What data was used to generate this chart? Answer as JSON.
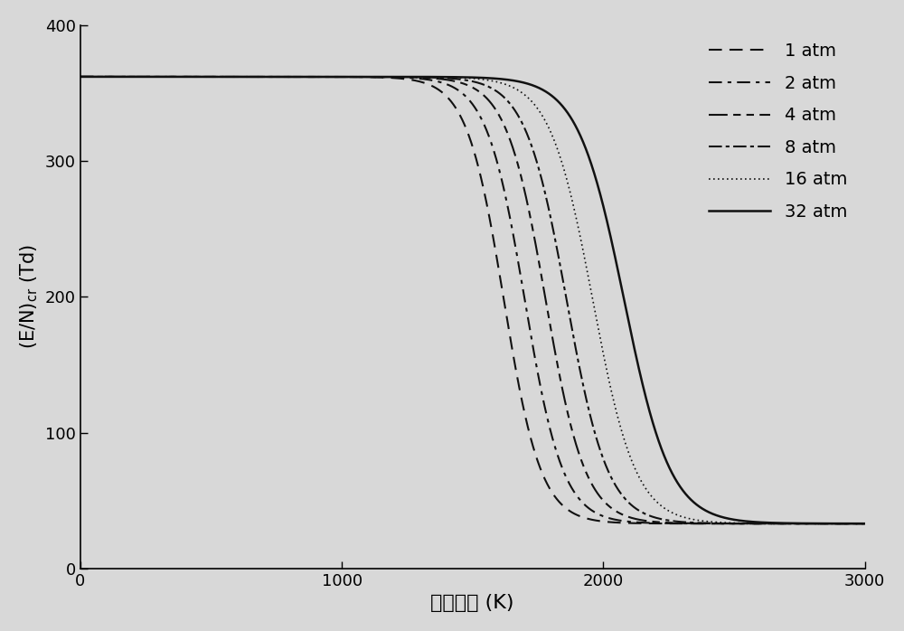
{
  "title": "",
  "xlabel": "气体温度 (K)",
  "ylabel_text": "(E/N)$_\\mathrm{cr}$ (Td)",
  "xlim": [
    0,
    3000
  ],
  "ylim": [
    0,
    400
  ],
  "xticks": [
    0,
    1000,
    2000,
    3000
  ],
  "yticks": [
    0,
    100,
    200,
    300,
    400
  ],
  "background_color": "#d8d8d8",
  "line_color": "#1a1a1a",
  "pressures": [
    1,
    2,
    4,
    8,
    16,
    32
  ],
  "flat_value": 362,
  "min_value": 33,
  "legend_labels": [
    "1 atm",
    "2 atm",
    "4 atm",
    "8 atm",
    "16 atm",
    "32 atm"
  ],
  "linewidths": [
    1.5,
    1.5,
    1.5,
    1.5,
    1.2,
    1.8
  ],
  "transition_centers": [
    1620,
    1700,
    1780,
    1860,
    1960,
    2080
  ],
  "transition_steepness": [
    320,
    330,
    340,
    355,
    370,
    400
  ]
}
